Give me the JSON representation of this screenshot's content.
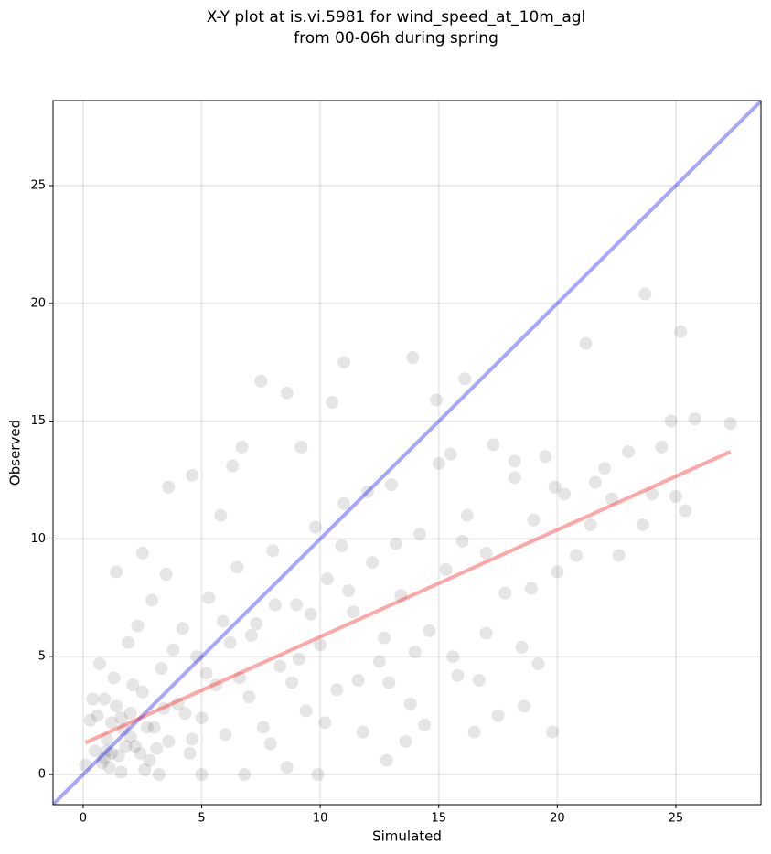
{
  "chart_data": {
    "type": "scatter",
    "title": [
      "X-Y plot at is.vi.5981 for wind_speed_at_10m_agl",
      "from 00-06h during spring"
    ],
    "xlabel": "Simulated",
    "ylabel": "Observed",
    "xlim": [
      -1.27,
      28.59
    ],
    "ylim": [
      -1.28,
      28.61
    ],
    "xticks": [
      0,
      5,
      10,
      15,
      20,
      25
    ],
    "yticks": [
      0,
      5,
      10,
      15,
      20,
      25
    ],
    "grid": true,
    "series": [
      {
        "kind": "scatter",
        "color": "#000000",
        "opacity": 0.1,
        "x": [
          0.5,
          0.8,
          1.0,
          1.2,
          0.9,
          1.5,
          1.7,
          2.0,
          2.2,
          1.3,
          0.6,
          1.1,
          2.5,
          2.8,
          3.0,
          3.3,
          3.6,
          4.0,
          4.2,
          4.5,
          4.8,
          5.0,
          5.3,
          5.6,
          6.0,
          6.2,
          6.5,
          7.0,
          7.3,
          7.6,
          8.0,
          8.3,
          8.6,
          9.0,
          9.4,
          9.8,
          10.0,
          10.3,
          10.7,
          11.0,
          11.4,
          11.8,
          12.2,
          12.5,
          13.0,
          13.4,
          13.8,
          14.2,
          14.6,
          15.0,
          15.3,
          15.8,
          16.2,
          16.5,
          17.0,
          17.3,
          17.8,
          18.2,
          18.5,
          19.0,
          19.5,
          19.8,
          20.3,
          20.8,
          21.2,
          21.6,
          22.0,
          22.6,
          23.0,
          23.7,
          24.0,
          24.8,
          25.2,
          25.4,
          25.8,
          27.3,
          7.5,
          8.6,
          11.0,
          13.9,
          16.1,
          3.6,
          4.6,
          1.4,
          2.5,
          0.1,
          0.3,
          0.4,
          0.7,
          1.9,
          2.3,
          2.9,
          3.5,
          5.8,
          6.3,
          6.7,
          9.2,
          10.5,
          12.0,
          1.6,
          2.6,
          3.2,
          5.0,
          6.8,
          9.9,
          12.8,
          13.6,
          14.4,
          15.6,
          16.7,
          17.5,
          18.6,
          19.2,
          18.9,
          20.0,
          21.4,
          22.3,
          24.4,
          14.9,
          15.5,
          16.0,
          12.7,
          11.6,
          10.9,
          9.6,
          8.8,
          8.1,
          7.1,
          6.6,
          5.9,
          5.2,
          4.3,
          3.8,
          3.1,
          2.7,
          2.1,
          1.8,
          1.4,
          1.0,
          0.9,
          1.2,
          2.0,
          1.6,
          2.4,
          3.4,
          4.6,
          7.9,
          9.1,
          10.2,
          11.2,
          12.9,
          13.2,
          14.0,
          17.0,
          18.2,
          19.9,
          23.6,
          25.0
        ],
        "y": [
          1.0,
          0.5,
          1.5,
          2.2,
          3.2,
          0.8,
          1.9,
          2.6,
          1.2,
          4.1,
          2.5,
          0.3,
          3.5,
          0.6,
          2.0,
          4.5,
          1.4,
          3.0,
          6.2,
          0.9,
          5.0,
          2.4,
          7.5,
          3.8,
          1.7,
          5.6,
          8.8,
          3.3,
          6.4,
          2.0,
          9.5,
          4.6,
          0.3,
          7.2,
          2.7,
          10.5,
          5.5,
          8.3,
          3.6,
          11.5,
          6.9,
          1.8,
          9.0,
          4.8,
          12.3,
          7.6,
          3.0,
          10.2,
          6.1,
          13.2,
          8.7,
          4.2,
          11.0,
          1.8,
          9.4,
          14.0,
          7.7,
          12.6,
          5.4,
          10.8,
          13.5,
          1.8,
          11.9,
          9.3,
          18.3,
          12.4,
          13.0,
          9.3,
          13.7,
          20.4,
          11.9,
          15.0,
          18.8,
          11.2,
          15.1,
          14.9,
          16.7,
          16.2,
          17.5,
          17.7,
          16.8,
          12.2,
          12.7,
          8.6,
          9.4,
          0.4,
          2.3,
          3.2,
          4.7,
          5.6,
          6.3,
          7.4,
          8.5,
          11.0,
          13.1,
          13.9,
          13.9,
          15.8,
          12.0,
          0.1,
          0.2,
          0.0,
          0.0,
          0.0,
          0.0,
          0.6,
          1.4,
          2.1,
          5.0,
          4.0,
          2.5,
          2.9,
          4.7,
          7.9,
          8.6,
          10.6,
          11.7,
          13.9,
          15.9,
          13.6,
          9.9,
          5.8,
          4.0,
          9.7,
          6.8,
          3.9,
          7.2,
          5.9,
          4.1,
          6.5,
          4.3,
          2.6,
          5.3,
          1.1,
          2.0,
          3.8,
          1.2,
          2.9,
          1.0,
          0.7,
          0.9,
          1.6,
          2.4,
          0.9,
          2.8,
          1.5,
          1.3,
          4.9,
          2.2,
          7.8,
          3.9,
          9.8,
          5.2,
          6.0,
          13.3,
          12.2,
          10.6,
          11.8
        ]
      },
      {
        "kind": "line",
        "color": "#0000ff",
        "opacity": 0.35,
        "x": [
          -1.27,
          28.59
        ],
        "y": [
          -1.27,
          28.59
        ]
      },
      {
        "kind": "line",
        "color": "#ff0000",
        "opacity": 0.35,
        "x": [
          0.1,
          27.3
        ],
        "y": [
          1.35,
          13.7
        ]
      }
    ]
  }
}
